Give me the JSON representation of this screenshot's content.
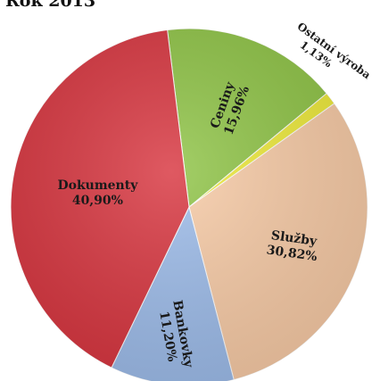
{
  "chart_data": {
    "type": "pie",
    "title": "Rok 2013",
    "slices": [
      {
        "label": "Ceniny",
        "value": 15.96,
        "display": "15,96%",
        "color": "#8fc446"
      },
      {
        "label": "Ostatní výroba",
        "value": 1.13,
        "display": "1,13%",
        "color": "#eeea3a"
      },
      {
        "label": "Služby",
        "value": 30.82,
        "display": "30,82%",
        "color": "#f8cba6"
      },
      {
        "label": "Bankovky",
        "value": 11.2,
        "display": "11,20%",
        "color": "#9dbcea"
      },
      {
        "label": "Dokumenty",
        "value": 40.9,
        "display": "40,90%",
        "color": "#d8353f"
      }
    ],
    "start_angle_deg": -7,
    "direction": "clockwise",
    "legend": "none"
  }
}
